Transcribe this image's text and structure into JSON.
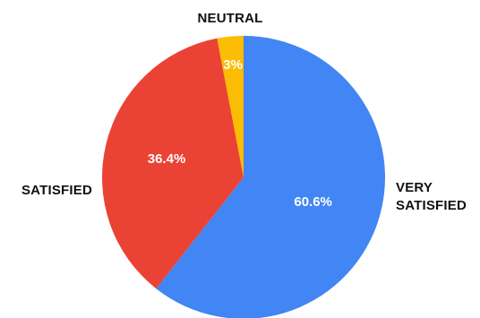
{
  "chart_data": {
    "type": "pie",
    "slices": [
      {
        "label": "VERY SATISFIED",
        "label_lines": [
          "VERY",
          "SATISFIED"
        ],
        "value": 60.6,
        "value_label": "60.6%",
        "color": "#4285F4"
      },
      {
        "label": "SATISFIED",
        "label_lines": [
          "SATISFIED"
        ],
        "value": 36.4,
        "value_label": "36.4%",
        "color": "#EA4335"
      },
      {
        "label": "NEUTRAL",
        "label_lines": [
          "NEUTRAL"
        ],
        "value": 3,
        "value_label": "3%",
        "color": "#FBBC04"
      }
    ],
    "start": "top",
    "direction": "clockwise",
    "legend": "none"
  }
}
